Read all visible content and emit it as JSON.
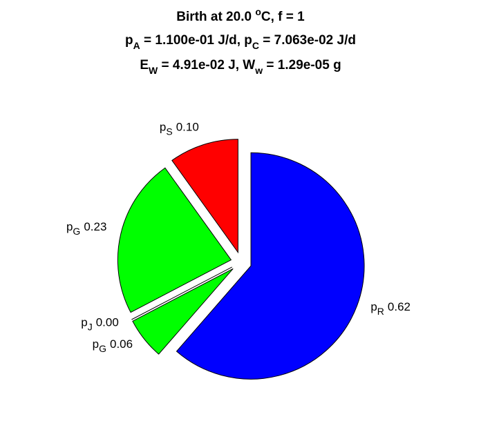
{
  "chart_data": {
    "type": "pie",
    "title": [
      [
        "Birth at 20.0 ",
        {
          "sup": "o"
        },
        "C, f = 1"
      ],
      [
        "p",
        {
          "sub": "A"
        },
        " = 1.100e-01 J/d, p",
        {
          "sub": "C"
        },
        " = 7.063e-02 J/d"
      ],
      [
        "E",
        {
          "sub": "W"
        },
        " = 4.91e-02 J, W",
        {
          "sub": "w"
        },
        " = 1.29e-05 g"
      ]
    ],
    "categories": [
      {
        "base": "p",
        "sub": "S"
      },
      {
        "base": "p",
        "sub": "G"
      },
      {
        "base": "p",
        "sub": "J"
      },
      {
        "base": "p",
        "sub": "G"
      },
      {
        "base": "p",
        "sub": "R"
      }
    ],
    "values": [
      0.1,
      0.23,
      0.0,
      0.06,
      0.62
    ],
    "value_labels": [
      "0.10",
      "0.23",
      "0.00",
      "0.06",
      "0.62"
    ],
    "colors": [
      "#ff0000",
      "#00ff00",
      null,
      "#00ff00",
      "#0000ff"
    ]
  }
}
